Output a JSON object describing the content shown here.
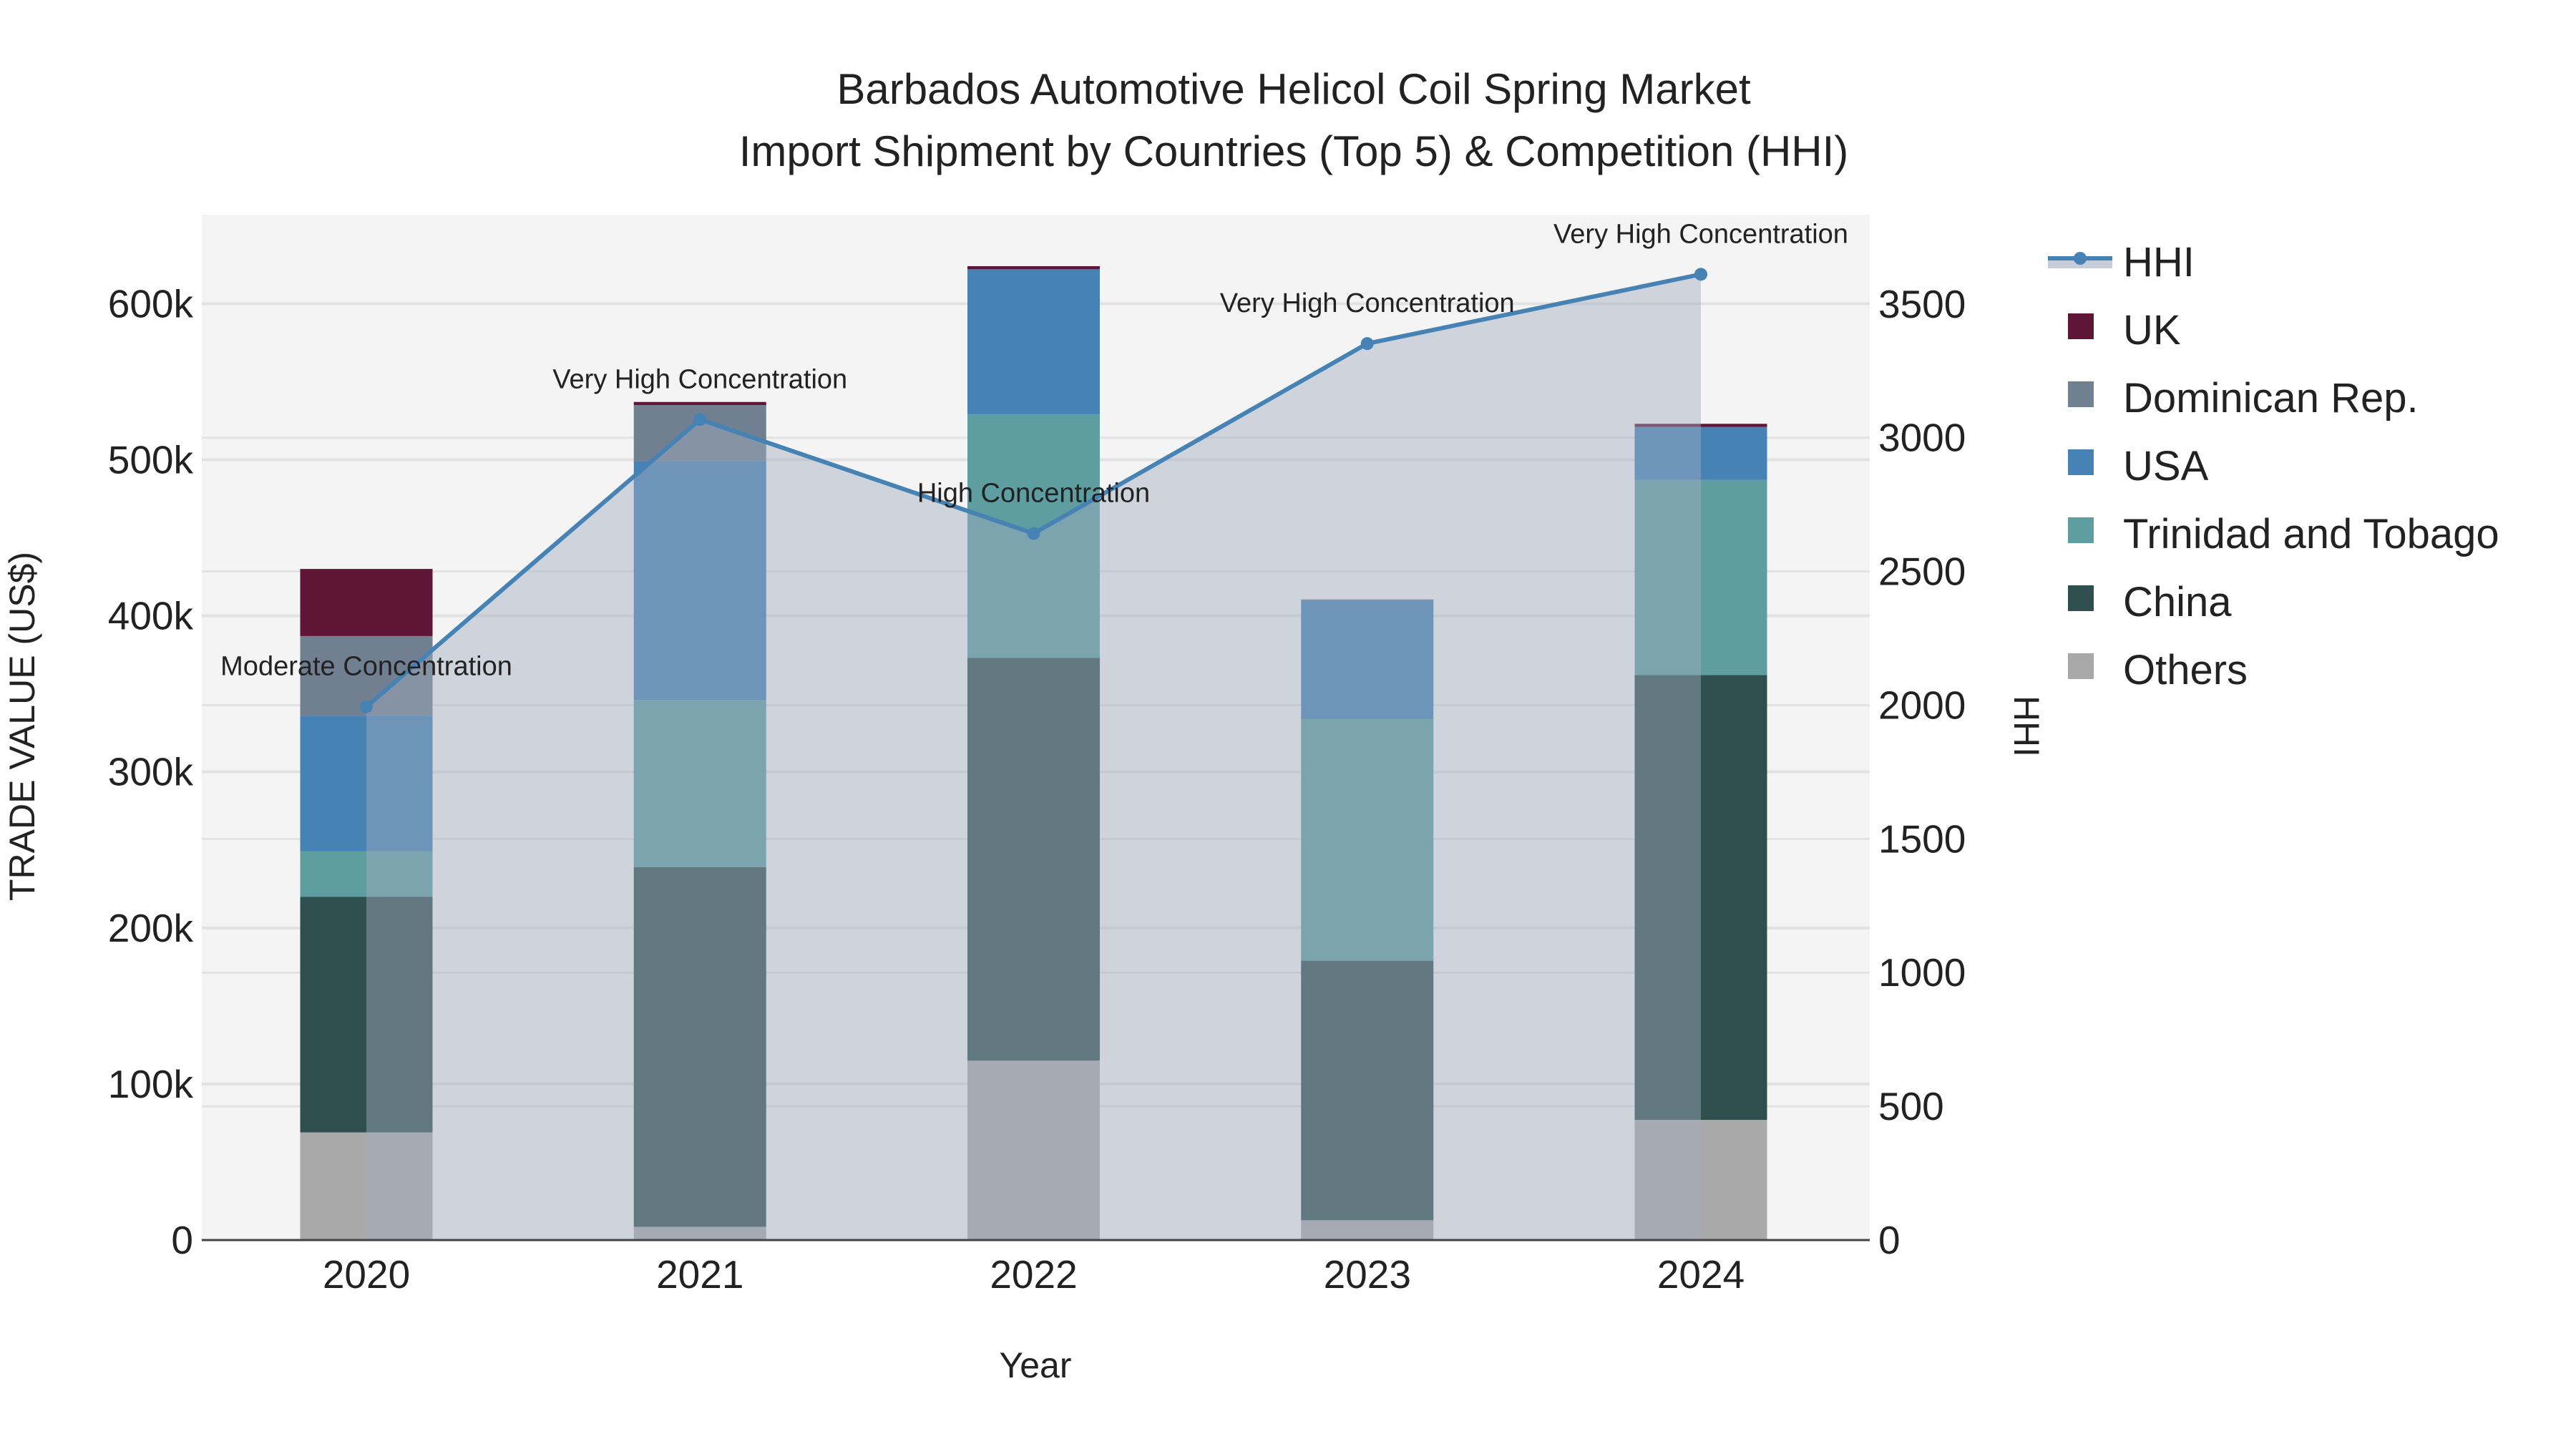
{
  "chart_data": {
    "type": "bar",
    "title": "Barbados Automotive Helicol Coil Spring Market",
    "subtitle": "Import Shipment by Countries (Top 5) & Competition (HHI)",
    "xlabel": "Year",
    "ylabel": "TRADE VALUE (US$)",
    "y2label": "HHI",
    "categories": [
      "2020",
      "2021",
      "2022",
      "2023",
      "2024"
    ],
    "ylim": [
      0,
      657000
    ],
    "y2lim": [
      0,
      3834
    ],
    "yticks": [
      0,
      100000,
      200000,
      300000,
      400000,
      500000,
      600000
    ],
    "ytick_labels": [
      "0",
      "100k",
      "200k",
      "300k",
      "400k",
      "500k",
      "600k"
    ],
    "y2ticks": [
      0,
      500,
      1000,
      1500,
      2000,
      2500,
      3000,
      3500
    ],
    "y2tick_labels": [
      "0",
      "500",
      "1000",
      "1500",
      "2000",
      "2500",
      "3000",
      "3500"
    ],
    "stacked": true,
    "series": [
      {
        "name": "Others",
        "color": "#a9a9a9",
        "values": [
          69000,
          8500,
          115000,
          12700,
          77000
        ]
      },
      {
        "name": "China",
        "color": "#2f4f4f",
        "values": [
          151000,
          230500,
          258000,
          166300,
          285000
        ]
      },
      {
        "name": "Trinidad and Tobago",
        "color": "#5f9ea0",
        "values": [
          29000,
          107000,
          156000,
          155000,
          125000
        ]
      },
      {
        "name": "USA",
        "color": "#4682b4",
        "values": [
          87000,
          153000,
          93000,
          76000,
          34000
        ]
      },
      {
        "name": "Dominican Rep.",
        "color": "#708090",
        "values": [
          51000,
          36000,
          0,
          500,
          0
        ]
      },
      {
        "name": "UK",
        "color": "#5f1535",
        "values": [
          43000,
          2000,
          2000,
          0,
          2000
        ]
      }
    ],
    "hhi": {
      "name": "HHI",
      "color": "#4682b4",
      "values": [
        1994,
        3068,
        2642,
        3352,
        3611
      ],
      "annotations": [
        "Moderate Concentration",
        "Very High Concentration",
        "High Concentration",
        "Very High Concentration",
        "Very High Concentration"
      ]
    },
    "legend_order": [
      "HHI",
      "UK",
      "Dominican Rep.",
      "USA",
      "Trinidad and Tobago",
      "China",
      "Others"
    ],
    "legend_placement": "right",
    "grid": true
  }
}
